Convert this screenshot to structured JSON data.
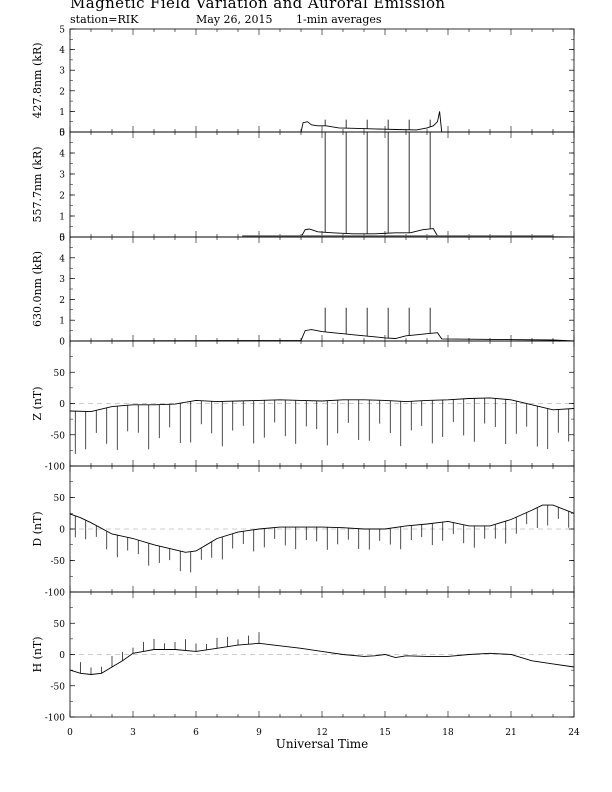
{
  "header": {
    "title": "Magnetic Field Variation and Auroral Emission",
    "station": "station=RIK",
    "date": "May 26, 2015",
    "averaging": "1-min averages"
  },
  "chart_data": {
    "type": "line",
    "xlabel": "Universal Time",
    "x_ticks": [
      0,
      3,
      6,
      9,
      12,
      15,
      18,
      21,
      24
    ],
    "xlim": [
      0,
      24
    ],
    "panels": [
      {
        "id": "p4278",
        "ylabel": "427.8nm (kR)",
        "ylim": [
          0,
          5
        ],
        "yticks": [
          0,
          1,
          2,
          3,
          4,
          5
        ],
        "series": [
          {
            "x": [
              0,
              11,
              11.1,
              11.3,
              11.5,
              11.8,
              12.2,
              12.8,
              13.5,
              14.5,
              15.5,
              16.5,
              17.0,
              17.3,
              17.5,
              17.6,
              17.7,
              24
            ],
            "y": [
              0,
              0,
              0.45,
              0.5,
              0.35,
              0.3,
              0.3,
              0.2,
              0.18,
              0.15,
              0.12,
              0.1,
              0.2,
              0.3,
              0.5,
              1.0,
              0,
              0
            ]
          }
        ],
        "spikes": [
          {
            "x": 12.15,
            "y": 0.6
          },
          {
            "x": 13.15,
            "y": 0.6
          },
          {
            "x": 14.15,
            "y": 0.6
          },
          {
            "x": 15.15,
            "y": 0.6
          },
          {
            "x": 16.15,
            "y": 0.6
          },
          {
            "x": 17.15,
            "y": 0.6
          }
        ]
      },
      {
        "id": "p5577",
        "ylabel": "557.7nm (kR)",
        "ylim": [
          0,
          5
        ],
        "yticks": [
          0,
          1,
          2,
          3,
          4,
          5
        ],
        "series": [
          {
            "x": [
              0,
              11,
              11.2,
              11.4,
              11.8,
              12.5,
              13.5,
              14.5,
              15.5,
              16.2,
              16.8,
              17.3,
              17.5,
              24
            ],
            "y": [
              0,
              0,
              0.35,
              0.38,
              0.25,
              0.2,
              0.15,
              0.15,
              0.2,
              0.2,
              0.35,
              0.4,
              0.05,
              0
            ]
          },
          {
            "x": [
              8.2,
              23.0
            ],
            "y": [
              0.05,
              0.05
            ]
          }
        ],
        "spikes": [
          {
            "x": 12.15,
            "y": 5.0
          },
          {
            "x": 13.15,
            "y": 5.0
          },
          {
            "x": 14.15,
            "y": 5.0
          },
          {
            "x": 15.15,
            "y": 5.0
          },
          {
            "x": 16.15,
            "y": 5.0
          },
          {
            "x": 17.15,
            "y": 5.0
          }
        ]
      },
      {
        "id": "p6300",
        "ylabel": "630.0nm (kR)",
        "ylim": [
          0,
          5
        ],
        "yticks": [
          0,
          1,
          2,
          3,
          4,
          5
        ],
        "series": [
          {
            "x": [
              0,
              8.2,
              11,
              11.2,
              11.5,
              12.0,
              12.5,
              13.0,
              13.5,
              14.0,
              14.5,
              15.0,
              15.5,
              16.0,
              16.5,
              17.0,
              17.5,
              17.7,
              23.0,
              24
            ],
            "y": [
              0,
              0.02,
              0.02,
              0.5,
              0.55,
              0.45,
              0.4,
              0.35,
              0.3,
              0.25,
              0.2,
              0.15,
              0.12,
              0.25,
              0.3,
              0.35,
              0.4,
              0.1,
              0.05,
              0
            ]
          }
        ],
        "spikes": [
          {
            "x": 12.15,
            "y": 1.6
          },
          {
            "x": 13.15,
            "y": 1.6
          },
          {
            "x": 14.15,
            "y": 1.6
          },
          {
            "x": 15.15,
            "y": 1.6
          },
          {
            "x": 16.15,
            "y": 1.6
          },
          {
            "x": 17.15,
            "y": 1.6
          }
        ]
      },
      {
        "id": "pZ",
        "ylabel": "Z (nT)",
        "ylim": [
          -100,
          100
        ],
        "yticks": [
          -100,
          -50,
          0,
          50
        ],
        "zero_line": true,
        "series": [
          {
            "x": [
              0,
              1,
              2,
              3,
              4,
              5,
              6,
              7,
              8,
              9,
              10,
              11,
              12,
              13,
              14,
              15,
              16,
              17,
              18,
              19,
              20,
              21,
              22,
              23,
              24
            ],
            "y": [
              -12,
              -13,
              -5,
              -2,
              -2,
              -1,
              5,
              3,
              4,
              5,
              6,
              5,
              4,
              6,
              6,
              5,
              3,
              5,
              6,
              8,
              9,
              6,
              -2,
              -10,
              -8
            ]
          }
        ],
        "spike_interval": 0.5,
        "spike_depth": -60
      },
      {
        "id": "pD",
        "ylabel": "D (nT)",
        "ylim": [
          -100,
          100
        ],
        "yticks": [
          -100,
          -50,
          0,
          50
        ],
        "zero_line": true,
        "series": [
          {
            "x": [
              0,
              0.5,
              1,
              2,
              3,
              4,
              5,
              5.5,
              6,
              6.5,
              7,
              8,
              9,
              10,
              11,
              12,
              13,
              14,
              15,
              16,
              17,
              18,
              19,
              20,
              21,
              22,
              22.5,
              23,
              24
            ],
            "y": [
              24,
              18,
              10,
              -8,
              -15,
              -25,
              -33,
              -37,
              -35,
              -25,
              -15,
              -5,
              0,
              3,
              3,
              3,
              2,
              0,
              0,
              5,
              8,
              12,
              5,
              5,
              15,
              30,
              38,
              38,
              25
            ]
          }
        ],
        "spike_interval": 0.5,
        "spike_depth": -30
      },
      {
        "id": "pH",
        "ylabel": "H (nT)",
        "ylim": [
          -100,
          100
        ],
        "yticks": [
          -100,
          -50,
          0,
          50
        ],
        "zero_line": true,
        "series": [
          {
            "x": [
              0,
              0.5,
              1,
              1.5,
              2,
              2.5,
              3,
              3.5,
              4,
              5,
              6,
              7,
              8,
              9,
              10,
              11,
              12,
              13,
              14,
              14.5,
              15,
              15.5,
              16,
              17,
              18,
              19,
              20,
              21,
              22,
              23,
              24
            ],
            "y": [
              -25,
              -30,
              -32,
              -30,
              -20,
              -10,
              2,
              5,
              8,
              8,
              5,
              10,
              15,
              18,
              14,
              10,
              5,
              0,
              -3,
              -2,
              0,
              -5,
              -2,
              -3,
              -3,
              0,
              2,
              0,
              -10,
              -15,
              -20
            ]
          }
        ],
        "spike_interval": 0.5,
        "spike_depth": 15,
        "spike_range": [
          0.5,
          9
        ]
      }
    ]
  }
}
